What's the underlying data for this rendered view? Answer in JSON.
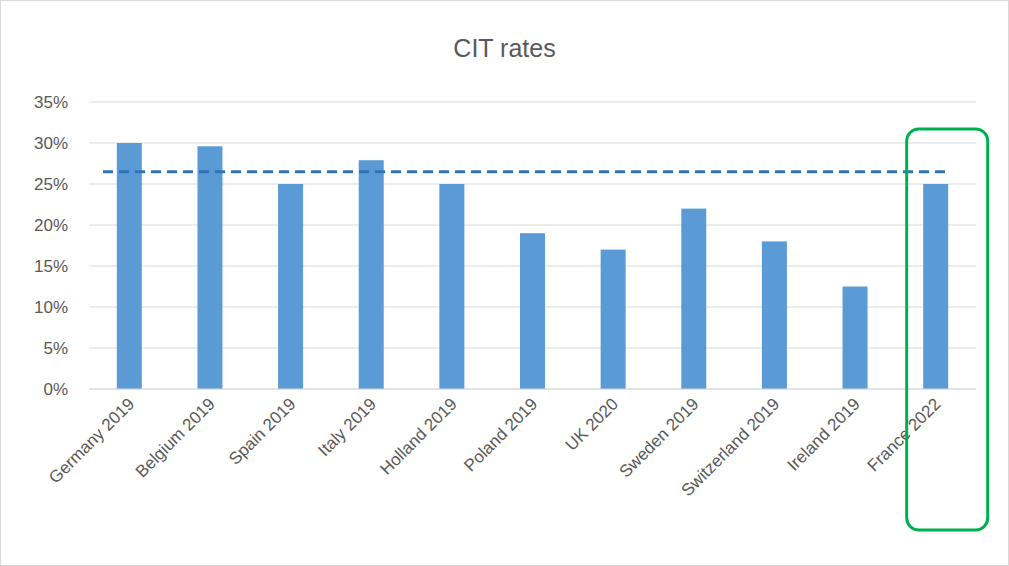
{
  "chart_data": {
    "type": "bar",
    "title": "CIT rates",
    "categories": [
      "Germany 2019",
      "Belgium 2019",
      "Spain 2019",
      "Italy 2019",
      "Holland 2019",
      "Poland 2019",
      "UK 2020",
      "Sweden 2019",
      "Switzerland 2019",
      "Ireland 2019",
      "France 2022"
    ],
    "values": [
      30,
      29.6,
      25,
      27.9,
      25,
      19,
      17,
      22,
      18,
      12.5,
      25
    ],
    "color": "#5b9bd5",
    "ylim": [
      0,
      35
    ],
    "yticks": [
      {
        "value": 0,
        "label": "0%"
      },
      {
        "value": 5,
        "label": "5%"
      },
      {
        "value": 10,
        "label": "10%"
      },
      {
        "value": 15,
        "label": "15%"
      },
      {
        "value": 20,
        "label": "20%"
      },
      {
        "value": 25,
        "label": "25%"
      },
      {
        "value": 30,
        "label": "30%"
      },
      {
        "value": 35,
        "label": "35%"
      }
    ],
    "reference_line": 26.5,
    "grid": true
  }
}
